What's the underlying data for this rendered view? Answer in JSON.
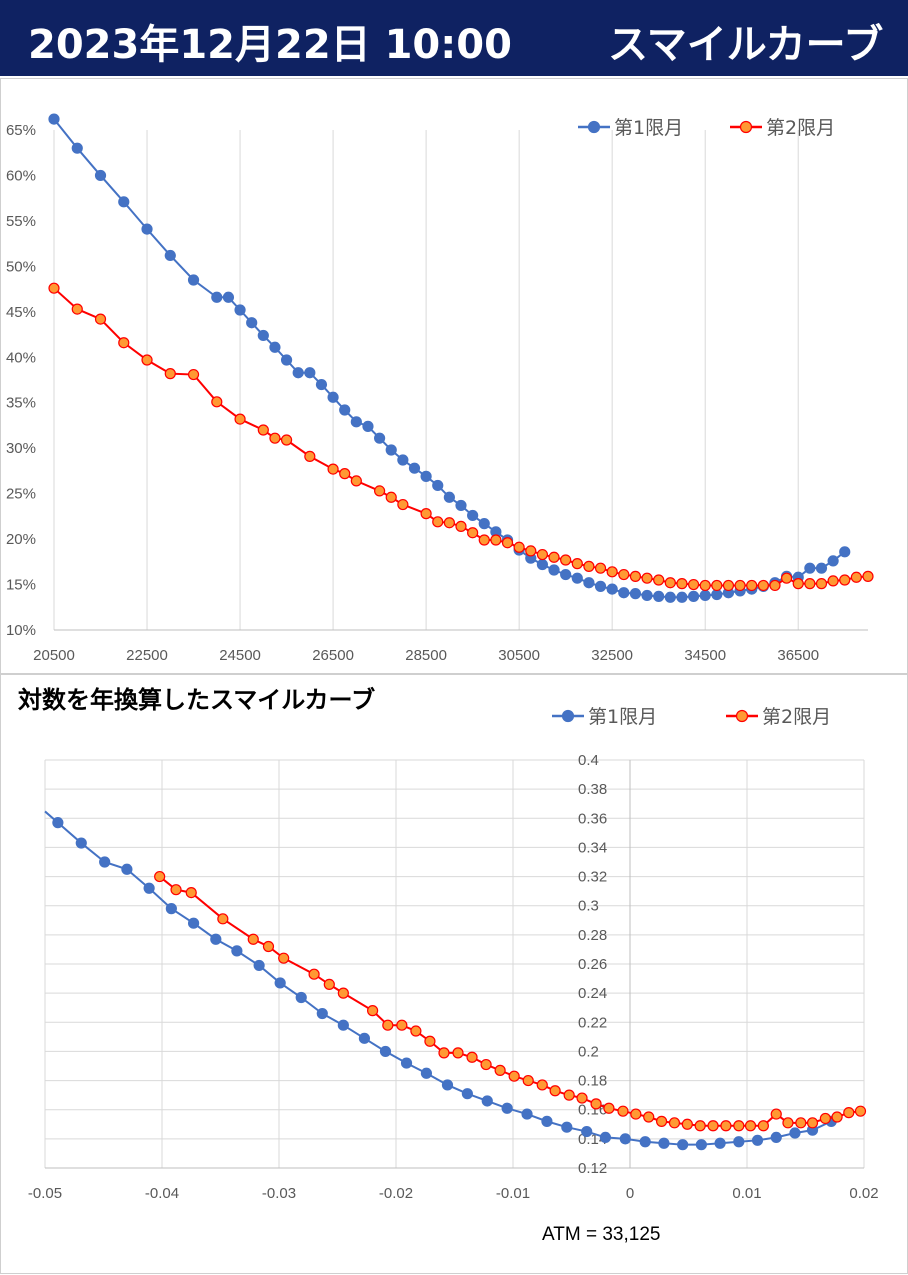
{
  "header": {
    "date": "2023年12月22日 10:00",
    "title": "スマイルカーブ"
  },
  "colors": {
    "header_bg": "#0f2262",
    "series1": "#4472c4",
    "series2_line": "#ff0000",
    "series2_fill": "#ff9933",
    "grid": "#d9d9d9"
  },
  "chart_data": [
    {
      "type": "line",
      "title": "",
      "xlabel": "",
      "ylabel": "",
      "xlim": [
        20500,
        38000
      ],
      "ylim": [
        0.1,
        0.65
      ],
      "x_ticks": [
        20500,
        22500,
        24500,
        26500,
        28500,
        30500,
        32500,
        34500,
        36500
      ],
      "x_tick_labels": [
        "20500",
        "22500",
        "24500",
        "26500",
        "28500",
        "30500",
        "32500",
        "34500",
        "36500"
      ],
      "y_ticks": [
        0.1,
        0.15,
        0.2,
        0.25,
        0.3,
        0.35,
        0.4,
        0.45,
        0.5,
        0.55,
        0.6,
        0.65
      ],
      "y_tick_labels": [
        "10%",
        "15%",
        "20%",
        "25%",
        "30%",
        "35%",
        "40%",
        "45%",
        "50%",
        "55%",
        "60%",
        "65%"
      ],
      "grid": "vertical",
      "legend": "top-right",
      "series": [
        {
          "name": "第1限月",
          "x": [
            20500,
            21000,
            21500,
            22000,
            22500,
            23000,
            23500,
            24000,
            24250,
            24500,
            24750,
            25000,
            25250,
            25500,
            25750,
            26000,
            26250,
            26500,
            26750,
            27000,
            27250,
            27500,
            27750,
            28000,
            28250,
            28500,
            28750,
            29000,
            29250,
            29500,
            29750,
            30000,
            30250,
            30500,
            30750,
            31000,
            31250,
            31500,
            31750,
            32000,
            32250,
            32500,
            32750,
            33000,
            33250,
            33500,
            33750,
            34000,
            34250,
            34500,
            34750,
            35000,
            35250,
            35500,
            35750,
            36000,
            36250,
            36500,
            36750,
            37000,
            37250,
            37500
          ],
          "y": [
            0.662,
            0.63,
            0.6,
            0.571,
            0.541,
            0.512,
            0.485,
            0.466,
            0.466,
            0.452,
            0.438,
            0.424,
            0.411,
            0.397,
            0.383,
            0.383,
            0.37,
            0.356,
            0.342,
            0.329,
            0.324,
            0.311,
            0.298,
            0.287,
            0.278,
            0.269,
            0.259,
            0.246,
            0.237,
            0.226,
            0.217,
            0.208,
            0.199,
            0.188,
            0.179,
            0.172,
            0.166,
            0.161,
            0.157,
            0.152,
            0.148,
            0.145,
            0.141,
            0.14,
            0.138,
            0.137,
            0.136,
            0.136,
            0.137,
            0.138,
            0.139,
            0.141,
            0.143,
            0.145,
            0.148,
            0.152,
            0.159,
            0.158,
            0.168,
            0.168,
            0.176,
            0.186
          ]
        },
        {
          "name": "第2限月",
          "x": [
            20500,
            21000,
            21500,
            22000,
            22500,
            23000,
            23500,
            24000,
            24500,
            25000,
            25250,
            25500,
            26000,
            26500,
            26750,
            27000,
            27500,
            27750,
            28000,
            28500,
            28750,
            29000,
            29250,
            29500,
            29750,
            30000,
            30250,
            30500,
            30750,
            31000,
            31250,
            31500,
            31750,
            32000,
            32250,
            32500,
            32750,
            33000,
            33250,
            33500,
            33750,
            34000,
            34250,
            34500,
            34750,
            35000,
            35250,
            35500,
            35750,
            36000,
            36250,
            36500,
            36750,
            37000,
            37250,
            37500,
            37750,
            38000
          ],
          "y": [
            0.476,
            0.453,
            0.442,
            0.416,
            0.397,
            0.382,
            0.381,
            0.351,
            0.332,
            0.32,
            0.311,
            0.309,
            0.291,
            0.277,
            0.272,
            0.264,
            0.253,
            0.246,
            0.238,
            0.228,
            0.219,
            0.218,
            0.214,
            0.207,
            0.199,
            0.199,
            0.196,
            0.191,
            0.187,
            0.183,
            0.18,
            0.177,
            0.173,
            0.17,
            0.168,
            0.164,
            0.161,
            0.159,
            0.157,
            0.155,
            0.152,
            0.151,
            0.15,
            0.149,
            0.149,
            0.149,
            0.149,
            0.149,
            0.149,
            0.149,
            0.157,
            0.151,
            0.151,
            0.151,
            0.154,
            0.155,
            0.158,
            0.159
          ]
        }
      ]
    },
    {
      "type": "line",
      "title": "対数を年換算したスマイルカーブ",
      "xlabel": "",
      "ylabel": "",
      "annotation": "ATM = 33,125",
      "xlim": [
        -0.05,
        0.02
      ],
      "ylim": [
        0.12,
        0.4
      ],
      "x_ticks": [
        -0.05,
        -0.04,
        -0.03,
        -0.02,
        -0.01,
        0,
        0.01,
        0.02
      ],
      "x_tick_labels": [
        "-0.05",
        "-0.04",
        "-0.03",
        "-0.02",
        "-0.01",
        "0",
        "0.01",
        "0.02"
      ],
      "y_ticks": [
        0.12,
        0.14,
        0.16,
        0.18,
        0.2,
        0.22,
        0.24,
        0.26,
        0.28,
        0.3,
        0.32,
        0.34,
        0.36,
        0.38,
        0.4
      ],
      "y_tick_labels": [
        "0.12",
        "0.14",
        "0.16",
        "0.18",
        "0.2",
        "0.22",
        "0.24",
        "0.26",
        "0.28",
        "0.3",
        "0.32",
        "0.34",
        "0.36",
        "0.38",
        "0.4"
      ],
      "grid": "both",
      "legend": "top-right",
      "series": [
        {
          "name": "第1限月",
          "x": [
            -0.0489,
            -0.0469,
            -0.0449,
            -0.043,
            -0.0411,
            -0.0392,
            -0.0373,
            -0.0354,
            -0.0336,
            -0.0317,
            -0.0299,
            -0.0281,
            -0.0263,
            -0.0245,
            -0.0227,
            -0.0209,
            -0.0191,
            -0.0174,
            -0.0156,
            -0.0139,
            -0.0122,
            -0.0105,
            -0.0088,
            -0.0071,
            -0.0054,
            -0.0037,
            -0.0021,
            -0.0004,
            0.0013,
            0.0029,
            0.0045,
            0.0061,
            0.0077,
            0.0093,
            0.0109,
            0.0125,
            0.0141,
            0.0156,
            0.0172
          ],
          "y": [
            0.357,
            0.343,
            0.33,
            0.325,
            0.312,
            0.298,
            0.288,
            0.277,
            0.269,
            0.259,
            0.247,
            0.237,
            0.226,
            0.218,
            0.209,
            0.2,
            0.192,
            0.185,
            0.177,
            0.171,
            0.166,
            0.161,
            0.157,
            0.152,
            0.148,
            0.145,
            0.141,
            0.14,
            0.138,
            0.137,
            0.136,
            0.136,
            0.137,
            0.138,
            0.139,
            0.141,
            0.144,
            0.146,
            0.152
          ]
        },
        {
          "name": "第2限月",
          "x": [
            -0.0402,
            -0.0388,
            -0.0375,
            -0.0348,
            -0.0322,
            -0.0309,
            -0.0296,
            -0.027,
            -0.0257,
            -0.0245,
            -0.022,
            -0.0207,
            -0.0195,
            -0.0183,
            -0.0171,
            -0.0159,
            -0.0147,
            -0.0135,
            -0.0123,
            -0.0111,
            -0.0099,
            -0.0087,
            -0.0075,
            -0.0064,
            -0.0052,
            -0.0041,
            -0.0029,
            -0.0018,
            -0.0006,
            0.0005,
            0.0016,
            0.0027,
            0.0038,
            0.0049,
            0.006,
            0.0071,
            0.0082,
            0.0093,
            0.0103,
            0.0114,
            0.0125,
            0.0135,
            0.0146,
            0.0156,
            0.0167,
            0.0177,
            0.0187,
            0.0197
          ],
          "y": [
            0.32,
            0.311,
            0.309,
            0.291,
            0.277,
            0.272,
            0.264,
            0.253,
            0.246,
            0.24,
            0.228,
            0.218,
            0.218,
            0.214,
            0.207,
            0.199,
            0.199,
            0.196,
            0.191,
            0.187,
            0.183,
            0.18,
            0.177,
            0.173,
            0.17,
            0.168,
            0.164,
            0.161,
            0.159,
            0.157,
            0.155,
            0.152,
            0.151,
            0.15,
            0.149,
            0.149,
            0.149,
            0.149,
            0.149,
            0.149,
            0.157,
            0.151,
            0.151,
            0.151,
            0.154,
            0.155,
            0.158,
            0.159
          ]
        }
      ]
    }
  ]
}
